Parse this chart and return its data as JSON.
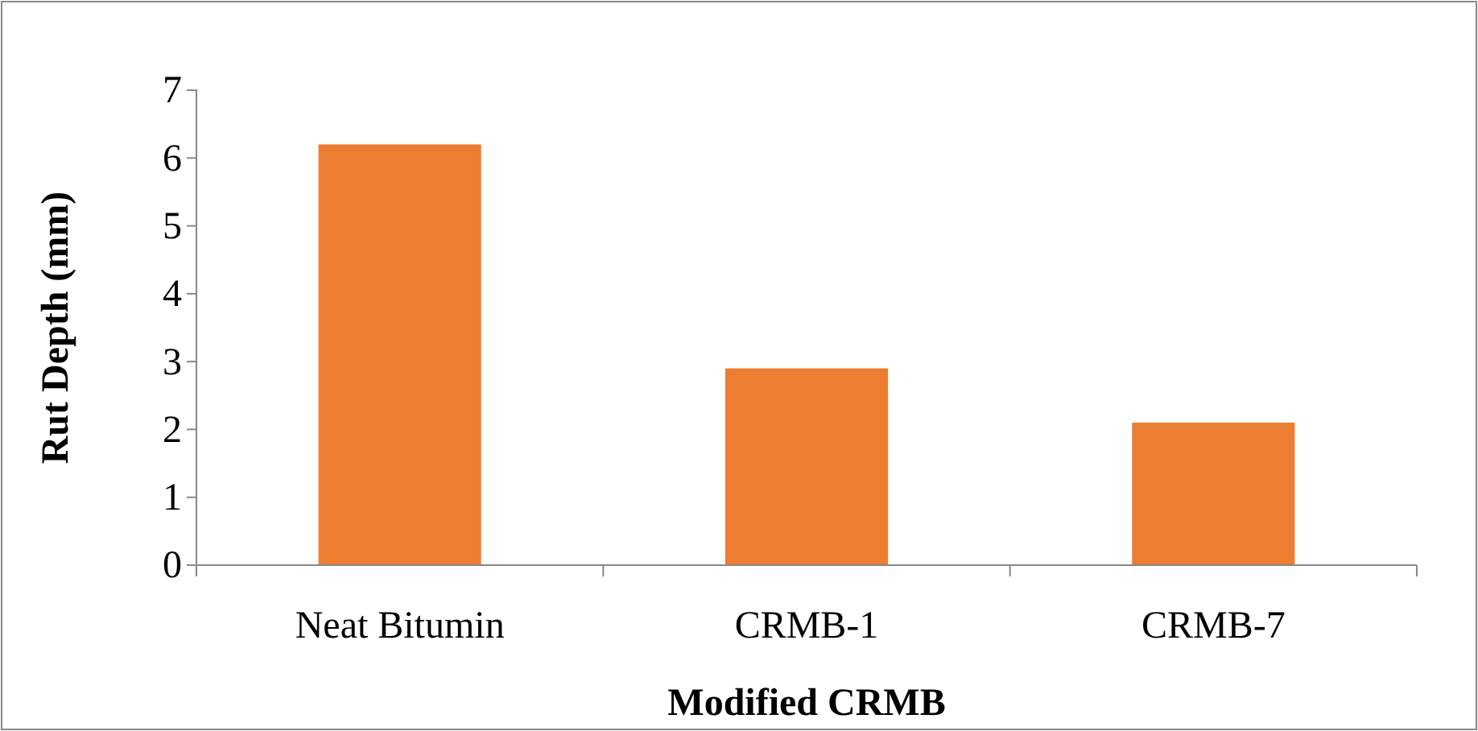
{
  "chart_data": {
    "type": "bar",
    "xlabel": "Modified CRMB",
    "ylabel": "Rut Depth (mm)",
    "categories": [
      "Neat Bitumin",
      "CRMB-1",
      "CRMB-7"
    ],
    "values": [
      6.2,
      2.9,
      2.1
    ],
    "color": "#ed7d31",
    "ylim": [
      0,
      7
    ],
    "yticks": [
      0,
      1,
      2,
      3,
      4,
      5,
      6,
      7
    ],
    "grid": false
  }
}
